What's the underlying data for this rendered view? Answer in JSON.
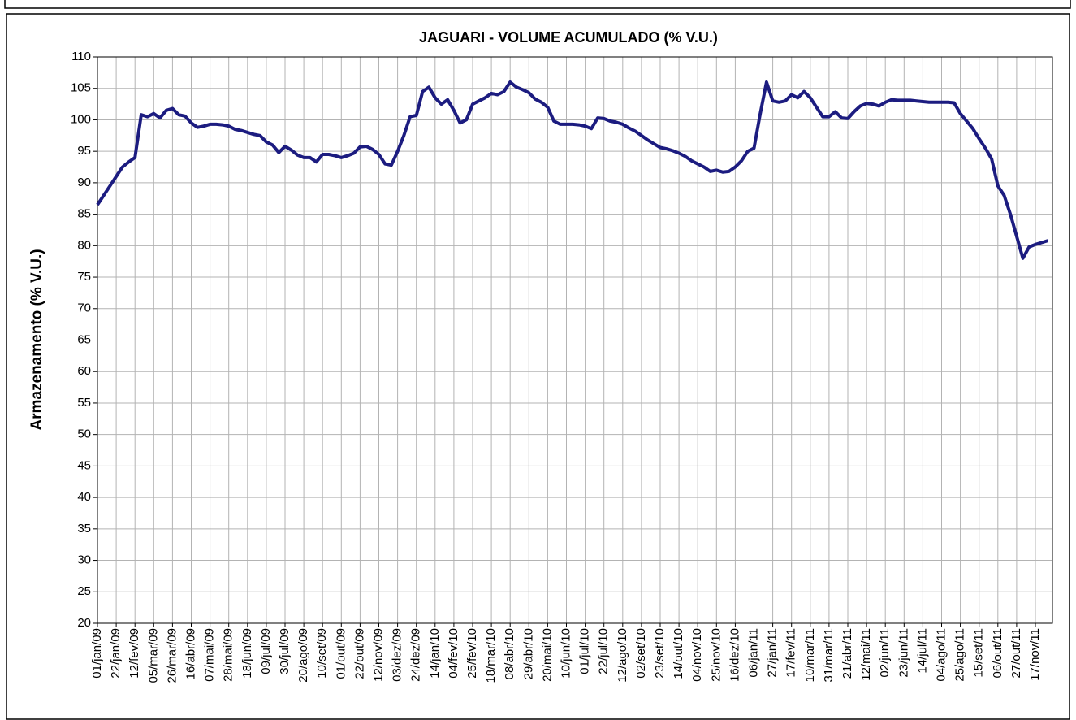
{
  "chart_data": {
    "type": "line",
    "title": "JAGUARI - VOLUME ACUMULADO (% V.U.)",
    "y_label": "Armazenamento (% V.U.)",
    "color": "#1c1c80",
    "grid": true,
    "ylim": [
      20,
      110
    ],
    "yticks": [
      20,
      25,
      30,
      35,
      40,
      45,
      50,
      55,
      60,
      65,
      70,
      75,
      80,
      85,
      90,
      95,
      100,
      105,
      110
    ],
    "categories": [
      "01/jan/09",
      null,
      null,
      "22/jan/09",
      null,
      null,
      "12/fev/09",
      null,
      null,
      "05/mar/09",
      null,
      null,
      "26/mar/09",
      null,
      null,
      "16/abr/09",
      null,
      null,
      "07/mai/09",
      null,
      null,
      "28/mai/09",
      null,
      null,
      "18/jun/09",
      null,
      null,
      "09/jul/09",
      null,
      null,
      "30/jul/09",
      null,
      null,
      "20/ago/09",
      null,
      null,
      "10/set/09",
      null,
      null,
      "01/out/09",
      null,
      null,
      "22/out/09",
      null,
      null,
      "12/nov/09",
      null,
      null,
      "03/dez/09",
      null,
      null,
      "24/dez/09",
      null,
      null,
      "14/jan/10",
      null,
      null,
      "04/fev/10",
      null,
      null,
      "25/fev/10",
      null,
      null,
      "18/mar/10",
      null,
      null,
      "08/abr/10",
      null,
      null,
      "29/abr/10",
      null,
      null,
      "20/mai/10",
      null,
      null,
      "10/jun/10",
      null,
      null,
      "01/jul/10",
      null,
      null,
      "22/jul/10",
      null,
      null,
      "12/ago/10",
      null,
      null,
      "02/set/10",
      null,
      null,
      "23/set/10",
      null,
      null,
      "14/out/10",
      null,
      null,
      "04/nov/10",
      null,
      null,
      "25/nov/10",
      null,
      null,
      "16/dez/10",
      null,
      null,
      "06/jan/11",
      null,
      null,
      "27/jan/11",
      null,
      null,
      "17/fev/11",
      null,
      null,
      "10/mar/11",
      null,
      null,
      "31/mar/11",
      null,
      null,
      "21/abr/11",
      null,
      null,
      "12/mai/11",
      null,
      null,
      "02/jun/11",
      null,
      null,
      "23/jun/11",
      null,
      null,
      "14/jul/11",
      null,
      null,
      "04/ago/11",
      null,
      null,
      "25/ago/11",
      null,
      null,
      "15/set/11",
      null,
      null,
      "06/out/11",
      null,
      null,
      "27/out/11",
      null,
      null,
      "17/nov/11",
      null,
      null
    ],
    "values": [
      86.5,
      88,
      89.5,
      91,
      92.5,
      93.3,
      94,
      100.8,
      100.5,
      101,
      100.3,
      101.5,
      101.8,
      100.8,
      100.6,
      99.5,
      98.8,
      99,
      99.3,
      99.3,
      99.2,
      99,
      98.5,
      98.3,
      98,
      97.7,
      97.5,
      96.5,
      96,
      94.8,
      95.8,
      95.2,
      94.4,
      94,
      94,
      93.3,
      94.5,
      94.5,
      94.3,
      94,
      94.3,
      94.7,
      95.7,
      95.8,
      95.3,
      94.5,
      93,
      92.8,
      95,
      97.5,
      100.5,
      100.7,
      104.5,
      105.2,
      103.5,
      102.5,
      103.2,
      101.5,
      99.5,
      100,
      102.5,
      103,
      103.5,
      104.2,
      104,
      104.5,
      106,
      105.2,
      104.8,
      104.3,
      103.3,
      102.8,
      102,
      99.8,
      99.3,
      99.3,
      99.3,
      99.2,
      99,
      98.6,
      100.3,
      100.2,
      99.8,
      99.6,
      99.3,
      98.7,
      98.2,
      97.5,
      96.8,
      96.2,
      95.6,
      95.4,
      95.1,
      94.7,
      94.2,
      93.5,
      93,
      92.5,
      91.8,
      92,
      91.7,
      91.8,
      92.5,
      93.5,
      95,
      95.5,
      101,
      106,
      103,
      102.8,
      103,
      104,
      103.5,
      104.5,
      103.5,
      102,
      100.5,
      100.5,
      101.3,
      100.3,
      100.2,
      101.3,
      102.2,
      102.6,
      102.5,
      102.2,
      102.8,
      103.2,
      103.1,
      103.1,
      103.1,
      103,
      102.9,
      102.8,
      102.8,
      102.8,
      102.8,
      102.7,
      101,
      99.8,
      98.6,
      97,
      95.5,
      93.8,
      89.5,
      88,
      85,
      81.5,
      78,
      79.8,
      80.2,
      80.5,
      80.8
    ]
  }
}
